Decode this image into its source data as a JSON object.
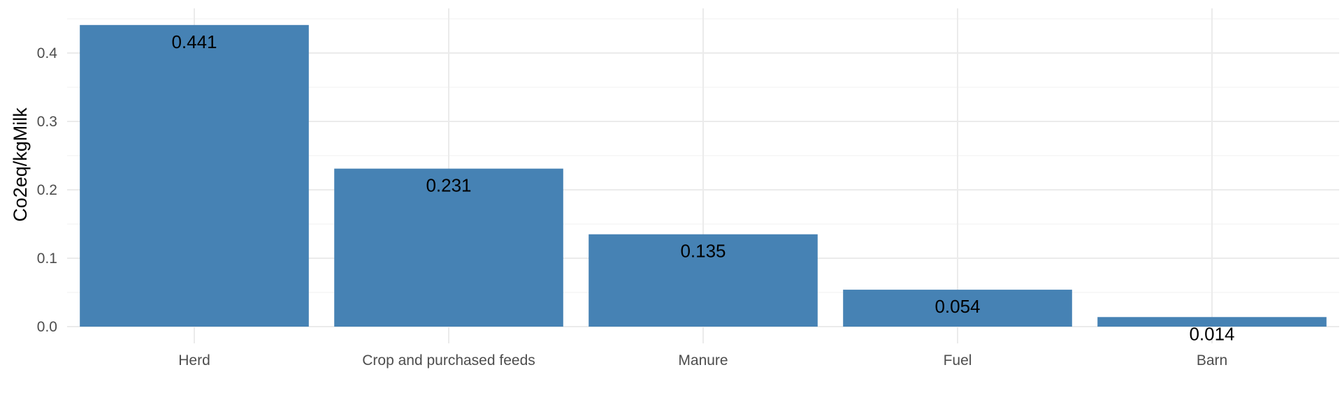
{
  "chart_data": {
    "type": "bar",
    "categories": [
      "Herd",
      "Crop and purchased feeds",
      "Manure",
      "Fuel",
      "Barn"
    ],
    "values": [
      0.441,
      0.231,
      0.135,
      0.054,
      0.014
    ],
    "data_labels": [
      "0.441",
      "0.231",
      "0.135",
      "0.054",
      "0.014"
    ],
    "xlabel": "",
    "ylabel": "Co2eq/kgMilk",
    "ylim": [
      0,
      0.45
    ],
    "yticks": [
      0.0,
      0.1,
      0.2,
      0.3,
      0.4
    ],
    "ytick_labels": [
      "0.0",
      "0.1",
      "0.2",
      "0.3",
      "0.4"
    ],
    "grid": true,
    "legend": "none",
    "bar_color": "#4682b4"
  }
}
